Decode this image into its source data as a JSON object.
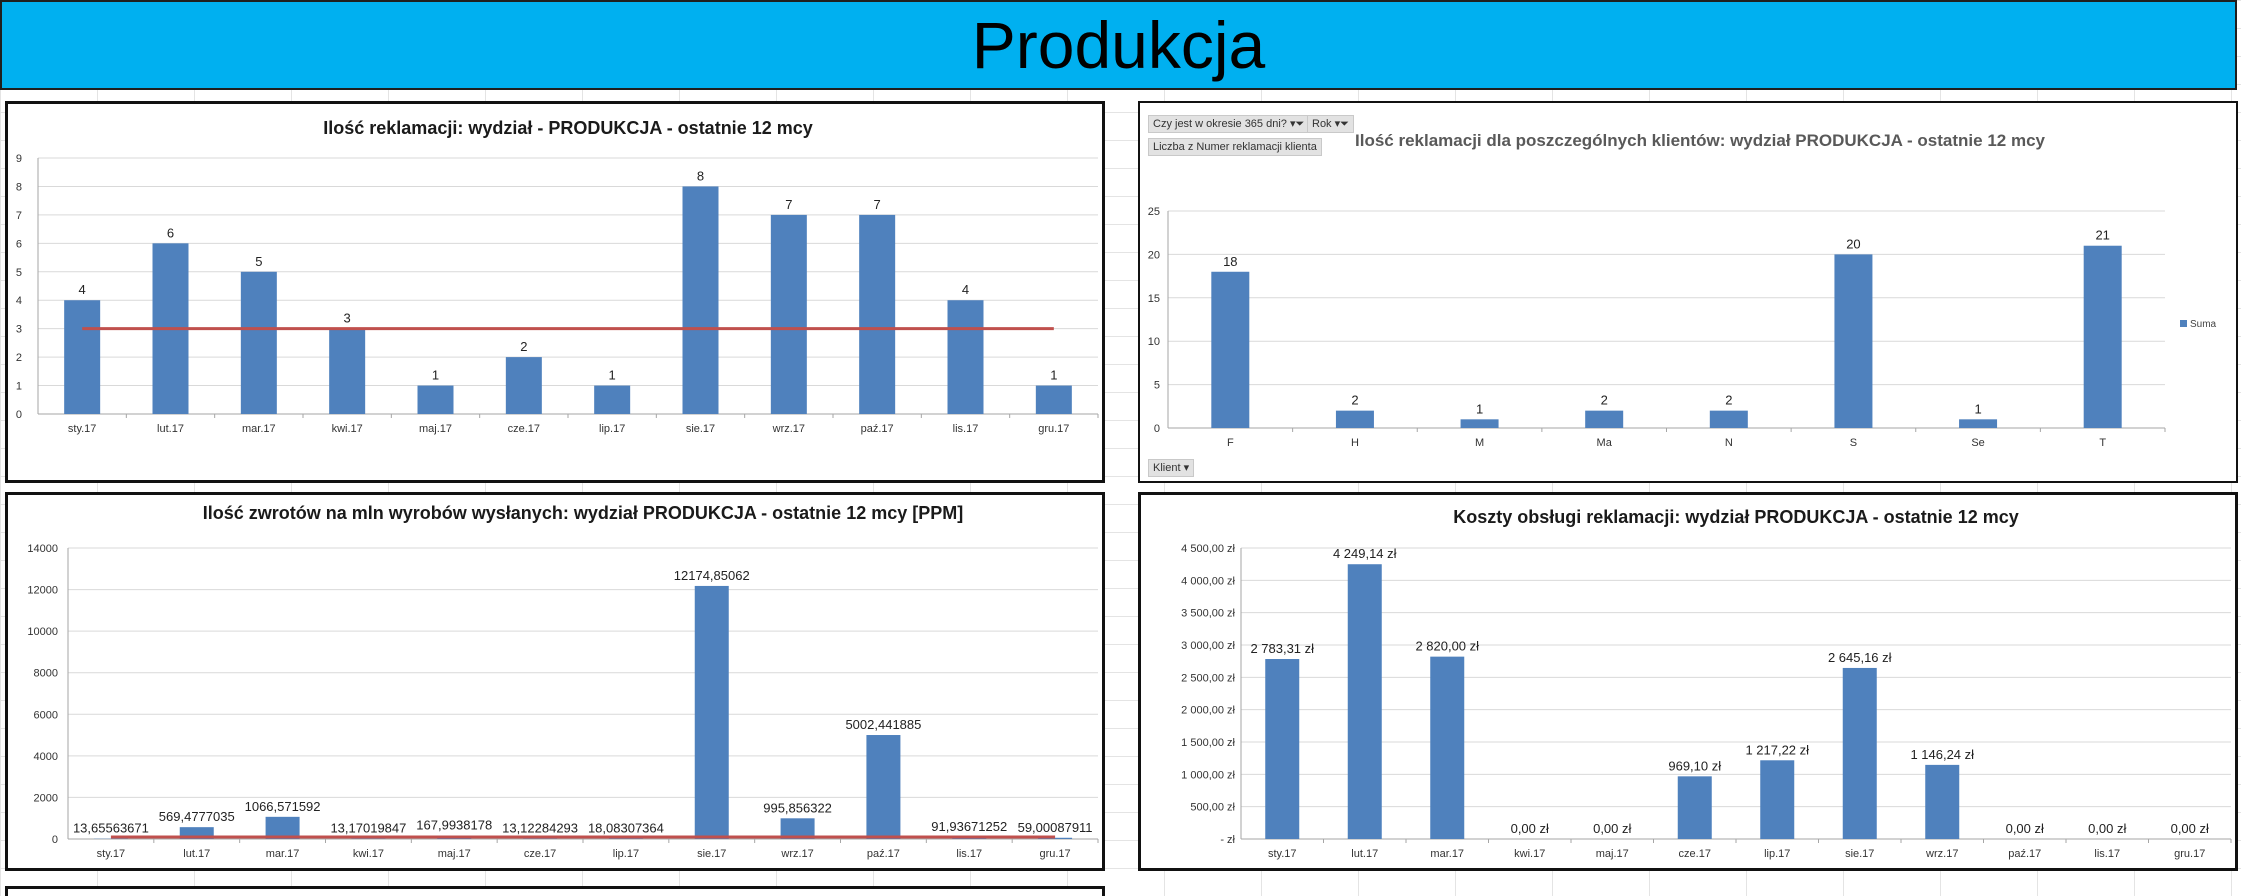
{
  "page": {
    "title": "Produkcja"
  },
  "colors": {
    "banner": "#00b0f0",
    "bar": "#4f81bd",
    "threshold": "#c0504d",
    "grid": "#d9d9d9"
  },
  "pivot": {
    "filter1": "Czy jest w okresie 365 dni?",
    "filter2": "Rok",
    "value_field": "Liczba z Numer reklamacji klienta",
    "axis_field": "Klient",
    "legend": "Suma"
  },
  "chart_data": [
    {
      "id": "c1",
      "type": "bar",
      "title": "Ilość reklamacji: wydział - PRODUKCJA - ostatnie 12 mcy",
      "categories": [
        "sty.17",
        "lut.17",
        "mar.17",
        "kwi.17",
        "maj.17",
        "cze.17",
        "lip.17",
        "sie.17",
        "wrz.17",
        "paź.17",
        "lis.17",
        "gru.17"
      ],
      "values": [
        4,
        6,
        5,
        3,
        1,
        2,
        1,
        8,
        7,
        7,
        4,
        1
      ],
      "labels": [
        "4",
        "6",
        "5",
        "3",
        "1",
        "2",
        "1",
        "8",
        "7",
        "7",
        "4",
        "1"
      ],
      "yticks": [
        "0",
        "1",
        "2",
        "3",
        "4",
        "5",
        "6",
        "7",
        "8",
        "9"
      ],
      "ylim": [
        0,
        9
      ],
      "threshold": 3
    },
    {
      "id": "c2",
      "type": "bar",
      "title": "Ilość reklamacji dla poszczególnych klientów: wydział PRODUKCJA - ostatnie 12 mcy",
      "categories": [
        "F",
        "H",
        "M",
        "Ma",
        "N",
        "S",
        "Se",
        "T"
      ],
      "values": [
        18,
        2,
        1,
        2,
        2,
        20,
        1,
        21
      ],
      "labels": [
        "18",
        "2",
        "1",
        "2",
        "2",
        "20",
        "1",
        "21"
      ],
      "yticks": [
        "0",
        "5",
        "10",
        "15",
        "20",
        "25"
      ],
      "ylim": [
        0,
        25
      ]
    },
    {
      "id": "c3",
      "type": "bar",
      "title": "Ilość zwrotów na mln wyrobów wysłanych: wydział PRODUKCJA - ostatnie 12 mcy [PPM]",
      "categories": [
        "sty.17",
        "lut.17",
        "mar.17",
        "kwi.17",
        "maj.17",
        "cze.17",
        "lip.17",
        "sie.17",
        "wrz.17",
        "paź.17",
        "lis.17",
        "gru.17"
      ],
      "values": [
        13.65563671,
        569.4777035,
        1066.571592,
        13.17019847,
        167.9938178,
        13.12284293,
        18.08307364,
        12174.85062,
        995.856322,
        5002.441885,
        91.93671252,
        59.00087911
      ],
      "labels": [
        "13,65563671",
        "569,4777035",
        "1066,571592",
        "13,17019847",
        "167,9938178",
        "13,12284293",
        "18,08307364",
        "12174,85062",
        "995,856322",
        "5002,441885",
        "91,93671252",
        "59,00087911"
      ],
      "yticks": [
        "0",
        "2000",
        "4000",
        "6000",
        "8000",
        "10000",
        "12000",
        "14000"
      ],
      "ylim": [
        0,
        14000
      ],
      "threshold": 0
    },
    {
      "id": "c4",
      "type": "bar",
      "title": "Koszty obsługi reklamacji: wydział PRODUKCJA - ostatnie 12 mcy",
      "categories": [
        "sty.17",
        "lut.17",
        "mar.17",
        "kwi.17",
        "maj.17",
        "cze.17",
        "lip.17",
        "sie.17",
        "wrz.17",
        "paź.17",
        "lis.17",
        "gru.17"
      ],
      "values": [
        2783.31,
        4249.14,
        2820.0,
        0,
        0,
        969.1,
        1217.22,
        2645.16,
        1146.24,
        0,
        0,
        0
      ],
      "labels": [
        "2 783,31 zł",
        "4 249,14 zł",
        "2 820,00 zł",
        "0,00 zł",
        "0,00 zł",
        "969,10 zł",
        "1 217,22 zł",
        "2 645,16 zł",
        "1 146,24 zł",
        "0,00 zł",
        "0,00 zł",
        "0,00 zł"
      ],
      "yticks": [
        "- zł",
        "500,00 zł",
        "1 000,00 zł",
        "1 500,00 zł",
        "2 000,00 zł",
        "2 500,00 zł",
        "3 000,00 zł",
        "3 500,00 zł",
        "4 000,00 zł",
        "4 500,00 zł"
      ],
      "ylim": [
        0,
        4500
      ]
    }
  ]
}
